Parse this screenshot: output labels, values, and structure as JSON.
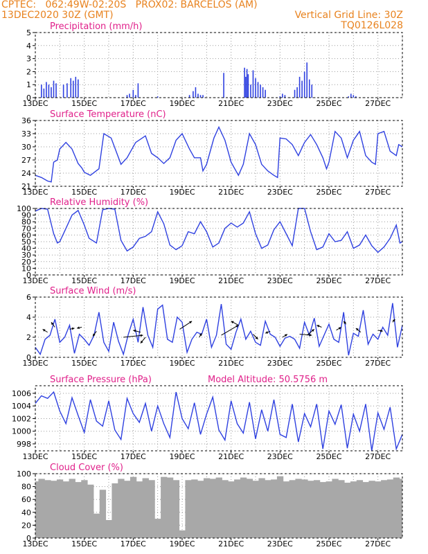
{
  "header": {
    "line1_left": "CPTEC:   062:49W-02:20S   PROX02: BARCELOS (AM)",
    "line2_left": "13DEC2020 30Z (GMT)",
    "line2_right": "Vertical Grid Line: 30Z",
    "line3_right": "TQ0126L028"
  },
  "colors": {
    "accent": "#e8821e",
    "title": "#e0208a",
    "series": "#2e40e0",
    "cloud": "#a8a8a8"
  },
  "chart_data": [
    {
      "id": "precip",
      "type": "bar",
      "title": "Precipitation (mm/h)",
      "extra_title": "",
      "ylim": [
        0,
        5
      ],
      "yticks": [
        "0",
        "1",
        "2",
        "3",
        "4",
        "5"
      ],
      "ytick_values": [
        0,
        1,
        2,
        3,
        4,
        5
      ],
      "xlim": [
        0,
        15
      ],
      "xticks": [
        "13DEC",
        "15DEC",
        "17DEC",
        "19DEC",
        "21DEC",
        "23DEC",
        "25DEC",
        "27DEC"
      ],
      "x": [
        0.25,
        0.35,
        0.45,
        0.55,
        0.65,
        0.75,
        0.85,
        1.15,
        1.3,
        1.45,
        1.55,
        1.65,
        1.75,
        3.75,
        3.85,
        4.0,
        4.1,
        4.2,
        5.0,
        6.3,
        6.45,
        6.55,
        6.65,
        6.75,
        6.85,
        7.7,
        8.55,
        8.6,
        8.65,
        8.7,
        8.8,
        8.9,
        9.0,
        9.1,
        9.2,
        9.3,
        9.4,
        10.0,
        10.1,
        10.2,
        10.6,
        10.7,
        10.8,
        10.9,
        11.0,
        11.1,
        11.2,
        11.3,
        12.8,
        12.9,
        13.0,
        13.1
      ],
      "values": [
        1.0,
        0.7,
        1.2,
        1.0,
        0.8,
        1.3,
        1.1,
        1.0,
        1.1,
        1.5,
        1.3,
        1.6,
        1.4,
        0.2,
        0.3,
        0.6,
        0.2,
        1.1,
        0.1,
        0.2,
        0.5,
        0.8,
        0.3,
        0.2,
        0.2,
        1.9,
        2.3,
        1.6,
        2.2,
        1.8,
        1.0,
        2.1,
        1.5,
        1.2,
        1.0,
        0.8,
        0.6,
        0.1,
        0.3,
        0.2,
        0.6,
        0.8,
        1.6,
        1.3,
        2.0,
        2.7,
        1.4,
        1.0,
        0.1,
        0.3,
        0.2,
        0.1
      ]
    },
    {
      "id": "temp",
      "type": "line",
      "title": "Surface Temperature (nC)",
      "extra_title": "",
      "ylim": [
        21,
        36
      ],
      "yticks": [
        "21",
        "24",
        "27",
        "30",
        "33",
        "36"
      ],
      "ytick_values": [
        21,
        24,
        27,
        30,
        33,
        36
      ],
      "xlim": [
        0,
        15
      ],
      "xticks": [
        "13DEC",
        "15DEC",
        "17DEC",
        "19DEC",
        "21DEC",
        "23DEC",
        "25DEC",
        "27DEC"
      ],
      "x": [
        0,
        0.25,
        0.5,
        0.65,
        0.75,
        0.9,
        1.0,
        1.25,
        1.5,
        1.75,
        1.9,
        2.0,
        2.25,
        2.6,
        2.8,
        3.1,
        3.5,
        3.75,
        3.9,
        4.1,
        4.5,
        4.75,
        5.0,
        5.25,
        5.5,
        5.75,
        6.0,
        6.3,
        6.5,
        6.75,
        6.85,
        7.0,
        7.3,
        7.5,
        7.75,
        8.0,
        8.3,
        8.5,
        8.75,
        9.0,
        9.25,
        9.5,
        9.75,
        9.9,
        10.0,
        10.25,
        10.5,
        10.75,
        11.0,
        11.25,
        11.5,
        11.75,
        11.9,
        12.0,
        12.25,
        12.5,
        12.75,
        13.0,
        13.25,
        13.5,
        13.75,
        13.9,
        14.0,
        14.25,
        14.5,
        14.75,
        14.85,
        15.0
      ],
      "y": [
        23.5,
        23.0,
        22.2,
        22.0,
        26.5,
        27.0,
        29.5,
        31.0,
        29.5,
        26.2,
        25.2,
        24.2,
        23.5,
        25.0,
        33.0,
        32.0,
        26.0,
        27.5,
        29.0,
        31.0,
        32.5,
        28.5,
        27.5,
        26.2,
        27.5,
        31.5,
        33.0,
        29.5,
        27.5,
        27.5,
        24.5,
        26.0,
        32.0,
        34.5,
        31.5,
        26.5,
        23.5,
        26.0,
        33.0,
        30.5,
        26.0,
        24.5,
        23.5,
        23.0,
        32.0,
        31.8,
        30.5,
        28.0,
        31.0,
        32.8,
        30.5,
        27.5,
        25.0,
        26.5,
        33.5,
        32.0,
        27.5,
        31.5,
        33.5,
        28.0,
        26.5,
        26.0,
        33.0,
        33.5,
        29.0,
        28.0,
        30.5,
        30.0
      ]
    },
    {
      "id": "rh",
      "type": "line",
      "title": "Relative Humidity (%)",
      "extra_title": "",
      "ylim": [
        0,
        100
      ],
      "yticks": [
        "0",
        "10",
        "20",
        "30",
        "40",
        "50",
        "60",
        "70",
        "80",
        "90",
        "100"
      ],
      "ytick_values": [
        0,
        10,
        20,
        30,
        40,
        50,
        60,
        70,
        80,
        90,
        100
      ],
      "xlim": [
        0,
        15
      ],
      "xticks": [
        "13DEC",
        "15DEC",
        "17DEC",
        "19DEC",
        "21DEC",
        "23DEC",
        "25DEC",
        "27DEC"
      ],
      "x": [
        0,
        0.25,
        0.5,
        0.75,
        0.9,
        1.0,
        1.25,
        1.5,
        1.75,
        2.0,
        2.2,
        2.5,
        2.75,
        3.0,
        3.25,
        3.5,
        3.75,
        4.0,
        4.25,
        4.5,
        4.75,
        5.0,
        5.25,
        5.5,
        5.75,
        6.0,
        6.25,
        6.5,
        6.75,
        7.0,
        7.25,
        7.5,
        7.75,
        8.0,
        8.25,
        8.5,
        8.75,
        9.0,
        9.25,
        9.5,
        9.75,
        10.0,
        10.25,
        10.5,
        10.75,
        11.0,
        11.25,
        11.5,
        11.75,
        12.0,
        12.25,
        12.5,
        12.75,
        13.0,
        13.25,
        13.5,
        13.75,
        14.0,
        14.25,
        14.5,
        14.75,
        14.9,
        15.0
      ],
      "y": [
        96,
        100,
        99,
        62,
        48,
        50,
        70,
        90,
        97,
        75,
        55,
        48,
        98,
        100,
        99,
        52,
        36,
        42,
        55,
        58,
        65,
        95,
        77,
        45,
        38,
        44,
        65,
        62,
        80,
        65,
        42,
        48,
        70,
        78,
        72,
        78,
        95,
        62,
        40,
        45,
        68,
        80,
        62,
        44,
        100,
        100,
        65,
        38,
        42,
        62,
        50,
        52,
        65,
        40,
        45,
        60,
        44,
        34,
        42,
        55,
        75,
        48,
        50
      ]
    },
    {
      "id": "wind",
      "type": "line",
      "title": "Surface Wind (m/s)",
      "extra_title": "",
      "ylim": [
        0,
        6
      ],
      "yticks": [
        "0",
        "2",
        "4",
        "6"
      ],
      "ytick_values": [
        0,
        2,
        4,
        6
      ],
      "xlim": [
        0,
        15
      ],
      "xticks": [
        "13DEC",
        "15DEC",
        "17DEC",
        "19DEC",
        "21DEC",
        "23DEC",
        "25DEC",
        "27DEC"
      ],
      "x": [
        0,
        0.2,
        0.4,
        0.6,
        0.8,
        1.0,
        1.2,
        1.4,
        1.6,
        1.8,
        2.0,
        2.2,
        2.4,
        2.6,
        2.8,
        3.0,
        3.2,
        3.4,
        3.6,
        3.8,
        4.0,
        4.2,
        4.4,
        4.6,
        4.8,
        5.0,
        5.2,
        5.4,
        5.6,
        5.8,
        6.0,
        6.2,
        6.4,
        6.6,
        6.8,
        7.0,
        7.2,
        7.4,
        7.6,
        7.8,
        8.0,
        8.2,
        8.4,
        8.6,
        8.8,
        9.0,
        9.2,
        9.4,
        9.6,
        9.8,
        10.0,
        10.2,
        10.4,
        10.6,
        10.8,
        11.0,
        11.2,
        11.4,
        11.6,
        11.8,
        12.0,
        12.2,
        12.4,
        12.6,
        12.8,
        13.0,
        13.2,
        13.4,
        13.6,
        13.8,
        14.0,
        14.2,
        14.4,
        14.6,
        14.8,
        15.0
      ],
      "y": [
        1.0,
        0.3,
        1.8,
        2.2,
        3.8,
        1.5,
        2.0,
        3.2,
        0.4,
        2.3,
        1.8,
        1.2,
        2.2,
        4.5,
        1.5,
        0.6,
        3.5,
        1.6,
        0.3,
        2.3,
        3.8,
        1.5,
        5.0,
        2.2,
        1.0,
        4.8,
        5.2,
        1.8,
        1.5,
        4.0,
        3.5,
        0.5,
        1.8,
        2.5,
        2.3,
        3.8,
        1.0,
        2.2,
        5.3,
        1.3,
        0.8,
        2.5,
        3.8,
        1.8,
        2.6,
        1.5,
        1.2,
        3.6,
        2.3,
        2.0,
        1.1,
        1.9,
        2.1,
        1.8,
        0.9,
        3.5,
        2.2,
        3.9,
        1.1,
        2.2,
        3.3,
        1.8,
        1.5,
        4.5,
        0.2,
        2.4,
        2.1,
        4.7,
        1.3,
        2.3,
        1.8,
        3.0,
        2.2,
        5.4,
        1.0,
        3.2
      ],
      "arrows": [
        {
          "x": 0.5,
          "y": 2.5,
          "dx": -0.2,
          "dy": 0.3
        },
        {
          "x": 0.8,
          "y": 3.0,
          "dx": -0.15,
          "dy": 0.5
        },
        {
          "x": 1.4,
          "y": 2.8,
          "dx": 0.2,
          "dy": 0.1
        },
        {
          "x": 1.9,
          "y": 3.0,
          "dx": -0.2,
          "dy": -0.1
        },
        {
          "x": 2.5,
          "y": 2.6,
          "dx": -0.15,
          "dy": -0.5
        },
        {
          "x": 3.6,
          "y": 2.0,
          "dx": 0.8,
          "dy": 0.2
        },
        {
          "x": 4.3,
          "y": 2.5,
          "dx": -0.3,
          "dy": 0.2
        },
        {
          "x": 4.5,
          "y": 2.0,
          "dx": -0.2,
          "dy": -0.6
        },
        {
          "x": 5.9,
          "y": 2.8,
          "dx": 0.5,
          "dy": 0.8
        },
        {
          "x": 6.7,
          "y": 2.0,
          "dx": 0.1,
          "dy": 0.4
        },
        {
          "x": 7.6,
          "y": 2.2,
          "dx": 0.7,
          "dy": 1.0
        },
        {
          "x": 8.3,
          "y": 3.2,
          "dx": -0.3,
          "dy": 0.4
        },
        {
          "x": 8.9,
          "y": 2.3,
          "dx": 0.2,
          "dy": -0.5
        },
        {
          "x": 9.6,
          "y": 2.6,
          "dx": -0.2,
          "dy": -0.2
        },
        {
          "x": 10.1,
          "y": 2.0,
          "dx": 0.2,
          "dy": 0.3
        },
        {
          "x": 10.8,
          "y": 2.3,
          "dx": 0.5,
          "dy": -0.1
        },
        {
          "x": 11.1,
          "y": 2.2,
          "dx": 0.3,
          "dy": 0.6
        },
        {
          "x": 11.7,
          "y": 3.0,
          "dx": -0.2,
          "dy": 0.2
        },
        {
          "x": 12.3,
          "y": 2.7,
          "dx": 0.2,
          "dy": 0.3
        },
        {
          "x": 12.7,
          "y": 3.3,
          "dx": -0.1,
          "dy": 0.3
        },
        {
          "x": 13.3,
          "y": 2.5,
          "dx": -0.2,
          "dy": 0.4
        },
        {
          "x": 14.0,
          "y": 2.7,
          "dx": 0.2,
          "dy": -0.1
        },
        {
          "x": 14.6,
          "y": 3.5,
          "dx": 0.1,
          "dy": 0.3
        }
      ]
    },
    {
      "id": "pres",
      "type": "line",
      "title": "Surface Pressure (hPa)",
      "extra_title": "Model Altitude: 50.5756  m",
      "ylim": [
        996.9,
        1007.2
      ],
      "yticks": [
        "998",
        "1000",
        "1002",
        "1004",
        "1006"
      ],
      "ytick_values": [
        998,
        1000,
        1002,
        1004,
        1006
      ],
      "xlim": [
        0,
        15
      ],
      "xticks": [
        "13DEC",
        "15DEC",
        "17DEC",
        "19DEC",
        "21DEC",
        "23DEC",
        "25DEC",
        "27DEC"
      ],
      "x": [
        0,
        0.25,
        0.5,
        0.75,
        1.0,
        1.25,
        1.5,
        1.75,
        2.0,
        2.25,
        2.5,
        2.75,
        3.0,
        3.25,
        3.5,
        3.75,
        4.0,
        4.25,
        4.5,
        4.75,
        5.0,
        5.25,
        5.5,
        5.75,
        6.0,
        6.25,
        6.5,
        6.75,
        7.0,
        7.25,
        7.5,
        7.75,
        8.0,
        8.25,
        8.5,
        8.75,
        9.0,
        9.25,
        9.5,
        9.75,
        10.0,
        10.25,
        10.5,
        10.75,
        11.0,
        11.25,
        11.5,
        11.75,
        12.0,
        12.25,
        12.5,
        12.75,
        13.0,
        13.25,
        13.5,
        13.75,
        14.0,
        14.25,
        14.5,
        14.75,
        15.0
      ],
      "y": [
        1004.4,
        1005.6,
        1005.2,
        1006.2,
        1003.2,
        1001.2,
        1005.3,
        1002.5,
        999.8,
        1005.0,
        1001.6,
        1000.8,
        1004.8,
        1000.2,
        998.7,
        1005.2,
        1002.8,
        1001.4,
        1004.4,
        1000.0,
        1004.0,
        1001.2,
        999.0,
        1006.2,
        1002.0,
        1000.4,
        1004.5,
        999.5,
        1002.7,
        1005.4,
        1000.2,
        998.6,
        1004.8,
        1001.2,
        999.7,
        1004.6,
        998.8,
        1003.4,
        1000.0,
        1005.0,
        999.5,
        999.0,
        1004.3,
        998.3,
        1002.8,
        1000.7,
        1004.3,
        997.2,
        1003.2,
        1001.1,
        1004.2,
        997.3,
        1002.7,
        1000.0,
        1004.3,
        996.9,
        1002.9,
        1000.3,
        1003.8,
        997.2,
        999.5
      ]
    },
    {
      "id": "cloud",
      "type": "bar",
      "title": "Cloud Cover (%)",
      "extra_title": "",
      "ylim": [
        0,
        100
      ],
      "yticks": [
        "0",
        "20",
        "40",
        "60",
        "80",
        "100"
      ],
      "ytick_values": [
        0,
        20,
        40,
        60,
        80,
        100
      ],
      "xlim": [
        0,
        15
      ],
      "xticks": [
        "13DEC",
        "15DEC",
        "17DEC",
        "19DEC",
        "21DEC",
        "23DEC",
        "25DEC",
        "27DEC"
      ],
      "x": [
        0,
        0.25,
        0.5,
        0.75,
        1.0,
        1.25,
        1.5,
        1.75,
        2.0,
        2.25,
        2.5,
        2.75,
        3.0,
        3.25,
        3.5,
        3.75,
        4.0,
        4.25,
        4.5,
        4.75,
        5.0,
        5.25,
        5.5,
        5.75,
        6.0,
        6.25,
        6.5,
        6.75,
        7.0,
        7.25,
        7.5,
        7.75,
        8.0,
        8.25,
        8.5,
        8.75,
        9.0,
        9.25,
        9.5,
        9.75,
        10.0,
        10.25,
        10.5,
        10.75,
        11.0,
        11.25,
        11.5,
        11.75,
        12.0,
        12.25,
        12.5,
        12.75,
        13.0,
        13.25,
        13.5,
        13.75,
        14.0,
        14.25,
        14.5,
        14.75,
        15.0
      ],
      "values": [
        88,
        92,
        90,
        89,
        91,
        88,
        92,
        87,
        90,
        83,
        38,
        75,
        28,
        85,
        92,
        89,
        95,
        88,
        93,
        90,
        30,
        95,
        94,
        90,
        12,
        90,
        91,
        89,
        93,
        92,
        94,
        90,
        88,
        91,
        94,
        92,
        89,
        93,
        90,
        91,
        96,
        88,
        90,
        92,
        91,
        89,
        90,
        87,
        88,
        92,
        90,
        86,
        88,
        90,
        87,
        89,
        88,
        90,
        91,
        94,
        92
      ]
    }
  ]
}
